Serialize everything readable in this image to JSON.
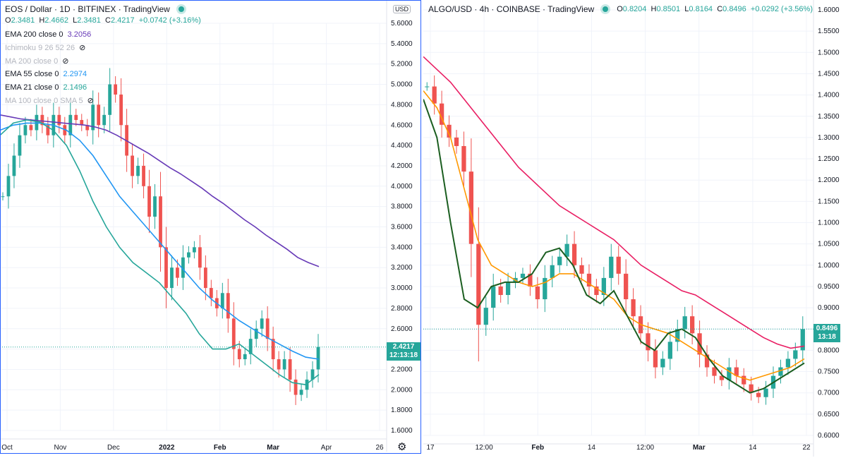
{
  "left": {
    "header": {
      "symbol": "EOS / Dollar · 1D · BITFINEX · TradingView"
    },
    "ohlc": {
      "o_label": "O",
      "o": "2.3481",
      "h_label": "H",
      "h": "2.4662",
      "l_label": "L",
      "l": "2.3481",
      "c_label": "C",
      "c": "2.4217",
      "change": "+0.0742 (+3.16%)"
    },
    "legend": [
      {
        "label": "EMA 200 close 0",
        "value": "3.2056",
        "color": "#673ab7",
        "hidden": false
      },
      {
        "label": "Ichimoku 9 26 52 26",
        "value": "",
        "color": "#b2b5be",
        "hidden": true
      },
      {
        "label": "MA 200 close 0",
        "value": "",
        "color": "#b2b5be",
        "hidden": true
      },
      {
        "label": "EMA 55 close 0",
        "value": "2.2974",
        "color": "#2196f3",
        "hidden": false
      },
      {
        "label": "EMA 21 close 0",
        "value": "2.1496",
        "color": "#26a69a",
        "hidden": false
      },
      {
        "label": "MA 100 close 0 SMA 5",
        "value": "",
        "color": "#b2b5be",
        "hidden": true
      }
    ],
    "currency": "USD",
    "price_tag": {
      "value": "2.4217",
      "countdown": "12:13:18",
      "color": "#26a69a"
    },
    "x_ticks": [
      "Oct",
      "Nov",
      "Dec",
      "2022",
      "Feb",
      "Mar",
      "Apr",
      "26"
    ]
  },
  "right": {
    "header": {
      "symbol": "ALGO/USD · 4h · COINBASE · TradingView"
    },
    "ohlc": {
      "o_label": "O",
      "o": "0.8204",
      "h_label": "H",
      "h": "0.8501",
      "l_label": "L",
      "l": "0.8164",
      "c_label": "C",
      "c": "0.8496",
      "change": "+0.0292 (+3.56%)"
    },
    "price_tag": {
      "value": "0.8496",
      "countdown": "13:18",
      "color": "#26a69a"
    },
    "x_ticks": [
      "17",
      "12:00",
      "Feb",
      "14",
      "12:00",
      "Mar",
      "14",
      "22"
    ]
  },
  "chart_data": [
    {
      "type": "candlestick",
      "title": "EOS / Dollar · 1D · BITFINEX",
      "ylim": [
        1.6,
        5.6
      ],
      "y_ticks": [
        5.6,
        5.4,
        5.2,
        5.0,
        4.8,
        4.6,
        4.4,
        4.2,
        4.0,
        3.8,
        3.6,
        3.4,
        3.2,
        3.0,
        2.8,
        2.6,
        2.4,
        2.2,
        2.0,
        1.8,
        1.6
      ],
      "y_tick_labels": [
        "5.6000",
        "5.4000",
        "5.2000",
        "5.0000",
        "4.8000",
        "4.6000",
        "4.4000",
        "4.2000",
        "4.0000",
        "3.8000",
        "3.6000",
        "3.4000",
        "3.2000",
        "3.0000",
        "2.8000",
        "2.6000",
        "2.4000",
        "2.2000",
        "2.0000",
        "1.8000",
        "1.6000"
      ],
      "close_series": [
        3.9,
        4.1,
        4.3,
        4.5,
        4.6,
        4.55,
        4.7,
        4.6,
        4.5,
        4.7,
        4.6,
        4.5,
        4.7,
        4.65,
        4.6,
        4.55,
        4.8,
        4.6,
        4.7,
        5.0,
        4.9,
        4.6,
        4.3,
        4.1,
        4.2,
        4.0,
        3.7,
        3.9,
        3.4,
        3.0,
        3.2,
        3.1,
        3.3,
        3.35,
        3.4,
        3.2,
        3.0,
        2.9,
        2.8,
        2.95,
        2.7,
        2.4,
        2.3,
        2.35,
        2.5,
        2.6,
        2.7,
        2.5,
        2.3,
        2.2,
        2.3,
        2.1,
        1.95,
        2.0,
        2.1,
        2.2,
        2.42
      ],
      "series": [
        {
          "name": "EMA 200 close 0",
          "color": "#673ab7",
          "values": [
            4.7,
            4.68,
            4.66,
            4.65,
            4.64,
            4.63,
            4.62,
            4.61,
            4.6,
            4.58,
            4.55,
            4.5,
            4.44,
            4.38,
            4.32,
            4.25,
            4.18,
            4.12,
            4.05,
            3.98,
            3.9,
            3.83,
            3.75,
            3.67,
            3.6,
            3.52,
            3.45,
            3.38,
            3.3,
            3.25,
            3.21
          ]
        },
        {
          "name": "EMA 55 close 0",
          "color": "#2196f3",
          "values": [
            4.55,
            4.6,
            4.62,
            4.62,
            4.6,
            4.55,
            4.45,
            4.3,
            4.1,
            3.9,
            3.75,
            3.6,
            3.45,
            3.3,
            3.15,
            3.0,
            2.88,
            2.78,
            2.68,
            2.6,
            2.52,
            2.45,
            2.38,
            2.32,
            2.3
          ]
        },
        {
          "name": "EMA 21 close 0",
          "color": "#26a69a",
          "values": [
            4.5,
            4.62,
            4.65,
            4.63,
            4.55,
            4.4,
            4.15,
            3.85,
            3.6,
            3.4,
            3.25,
            3.15,
            3.05,
            2.9,
            2.75,
            2.55,
            2.4,
            2.4,
            2.45,
            2.35,
            2.25,
            2.15,
            2.07,
            2.05,
            2.15
          ]
        }
      ]
    },
    {
      "type": "candlestick",
      "title": "ALGO/USD · 4h · COINBASE",
      "ylim": [
        0.6,
        1.6
      ],
      "y_ticks": [
        1.6,
        1.55,
        1.5,
        1.45,
        1.4,
        1.35,
        1.3,
        1.25,
        1.2,
        1.15,
        1.1,
        1.05,
        1.0,
        0.95,
        0.9,
        0.85,
        0.8,
        0.75,
        0.7,
        0.65,
        0.6
      ],
      "y_tick_labels": [
        "1.6000",
        "1.5500",
        "1.5000",
        "1.4500",
        "1.4000",
        "1.3500",
        "1.3000",
        "1.2500",
        "1.2000",
        "1.1500",
        "1.1000",
        "1.0500",
        "1.0000",
        "0.9500",
        "0.9000",
        "0.8500",
        "0.8000",
        "0.7500",
        "0.7000",
        "0.6500",
        "0.6000"
      ],
      "close_series": [
        1.42,
        1.38,
        1.33,
        1.3,
        1.28,
        1.22,
        1.05,
        0.86,
        0.9,
        0.95,
        0.93,
        0.96,
        0.97,
        0.98,
        0.95,
        0.92,
        0.97,
        1.0,
        1.02,
        1.05,
        1.0,
        0.98,
        0.95,
        0.93,
        0.97,
        1.02,
        0.98,
        0.92,
        0.88,
        0.84,
        0.8,
        0.76,
        0.78,
        0.82,
        0.85,
        0.88,
        0.84,
        0.79,
        0.76,
        0.74,
        0.73,
        0.76,
        0.74,
        0.72,
        0.7,
        0.69,
        0.71,
        0.74,
        0.76,
        0.78,
        0.8,
        0.85
      ],
      "series": [
        {
          "name": "",
          "color": "#e91e63",
          "values": [
            1.49,
            1.46,
            1.43,
            1.39,
            1.35,
            1.31,
            1.27,
            1.23,
            1.2,
            1.17,
            1.14,
            1.12,
            1.1,
            1.08,
            1.06,
            1.03,
            1.0,
            0.98,
            0.96,
            0.94,
            0.93,
            0.91,
            0.89,
            0.87,
            0.85,
            0.83,
            0.815,
            0.805,
            0.81
          ]
        },
        {
          "name": "",
          "color": "#ff9800",
          "values": [
            1.41,
            1.37,
            1.3,
            1.18,
            1.06,
            1.0,
            0.98,
            0.96,
            0.95,
            0.96,
            0.98,
            0.98,
            0.96,
            0.94,
            0.92,
            0.88,
            0.86,
            0.85,
            0.84,
            0.82,
            0.8,
            0.78,
            0.76,
            0.74,
            0.73,
            0.74,
            0.75,
            0.76,
            0.78
          ]
        },
        {
          "name": "",
          "color": "#1b5e20",
          "values": [
            1.39,
            1.3,
            1.1,
            0.92,
            0.9,
            0.95,
            0.96,
            0.96,
            0.98,
            1.03,
            1.04,
            1.0,
            0.93,
            0.91,
            0.94,
            0.88,
            0.82,
            0.8,
            0.84,
            0.85,
            0.83,
            0.78,
            0.74,
            0.72,
            0.7,
            0.71,
            0.73,
            0.75,
            0.77
          ]
        }
      ]
    }
  ]
}
